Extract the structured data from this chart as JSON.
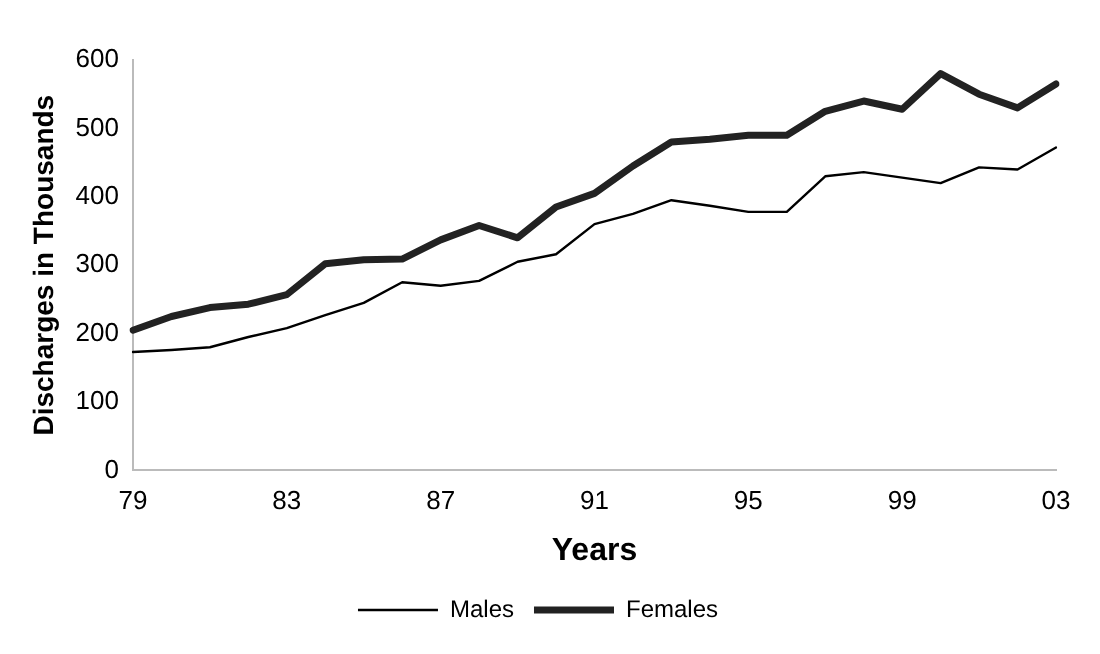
{
  "chart_data": {
    "type": "line",
    "xlabel": "Years",
    "ylabel": "Discharges in Thousands",
    "categories": [
      "79",
      null,
      null,
      null,
      "83",
      null,
      null,
      null,
      "87",
      null,
      null,
      null,
      "91",
      null,
      null,
      null,
      "95",
      null,
      null,
      null,
      "99",
      null,
      null,
      null,
      "03"
    ],
    "series": [
      {
        "name": "Males",
        "color": "#000000",
        "values": [
          173,
          176,
          180,
          195,
          208,
          227,
          245,
          275,
          270,
          277,
          305,
          316,
          360,
          375,
          395,
          387,
          378,
          378,
          430,
          436,
          428,
          420,
          443,
          440,
          472
        ]
      },
      {
        "name": "Females",
        "color": "#222222",
        "values": [
          205,
          225,
          238,
          243,
          257,
          302,
          308,
          309,
          337,
          358,
          340,
          385,
          405,
          445,
          480,
          484,
          490,
          490,
          525,
          540,
          528,
          580,
          550,
          530,
          565
        ]
      }
    ],
    "ylim": [
      0,
      600
    ],
    "yticks": [
      0,
      100,
      200,
      300,
      400,
      500,
      600
    ],
    "grid": false,
    "legend": "bottom",
    "marker": "none",
    "line_style": "solid"
  }
}
